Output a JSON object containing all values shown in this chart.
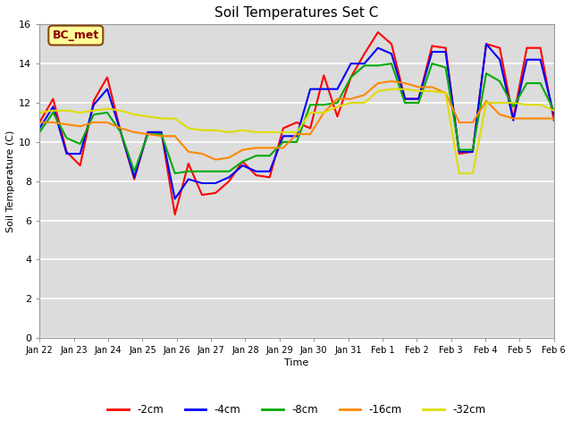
{
  "title": "Soil Temperatures Set C",
  "xlabel": "Time",
  "ylabel": "Soil Temperature (C)",
  "ylim": [
    0,
    16
  ],
  "yticks": [
    0,
    2,
    4,
    6,
    8,
    10,
    12,
    14,
    16
  ],
  "plot_bg_color": "#dcdcdc",
  "fig_bg_color": "#ffffff",
  "annotation_label": "BC_met",
  "annotation_box_color": "#ffff99",
  "annotation_box_edge": "#8b4513",
  "annotation_text_color": "#8b0000",
  "x_labels": [
    "Jan 22",
    "Jan 23",
    "Jan 24",
    "Jan 25",
    "Jan 26",
    "Jan 27",
    "Jan 28",
    "Jan 29",
    "Jan 30",
    "Jan 31",
    "Feb 1",
    "Feb 2",
    "Feb 3",
    "Feb 4",
    "Feb 5",
    "Feb 6"
  ],
  "series": {
    "neg2cm": {
      "label": "-2cm",
      "color": "#ff0000",
      "values": [
        11.0,
        12.2,
        9.5,
        8.8,
        12.1,
        13.3,
        10.5,
        8.1,
        10.5,
        10.5,
        6.3,
        8.9,
        7.3,
        7.4,
        8.0,
        9.0,
        8.3,
        8.2,
        10.7,
        11.0,
        10.7,
        13.4,
        11.3,
        13.3,
        14.5,
        15.6,
        15.0,
        12.2,
        12.2,
        14.9,
        14.8,
        9.4,
        9.5,
        15.0,
        14.8,
        11.2,
        14.8,
        14.8,
        11.1
      ]
    },
    "neg4cm": {
      "label": "-4cm",
      "color": "#0000ff",
      "values": [
        10.7,
        11.8,
        9.4,
        9.4,
        11.9,
        12.7,
        10.5,
        8.2,
        10.5,
        10.5,
        7.1,
        8.1,
        7.9,
        7.9,
        8.2,
        8.8,
        8.5,
        8.5,
        10.3,
        10.3,
        12.7,
        12.7,
        12.7,
        14.0,
        14.0,
        14.8,
        14.5,
        12.2,
        12.2,
        14.6,
        14.6,
        9.5,
        9.5,
        15.0,
        14.2,
        11.1,
        14.2,
        14.2,
        11.4
      ]
    },
    "neg8cm": {
      "label": "-8cm",
      "color": "#00aa00",
      "values": [
        10.5,
        11.5,
        10.2,
        9.9,
        11.4,
        11.5,
        10.5,
        8.5,
        10.4,
        10.4,
        8.4,
        8.5,
        8.5,
        8.5,
        8.5,
        9.0,
        9.3,
        9.3,
        10.0,
        10.0,
        11.9,
        11.9,
        12.0,
        13.3,
        13.9,
        13.9,
        14.0,
        12.0,
        12.0,
        14.0,
        13.8,
        9.6,
        9.6,
        13.5,
        13.1,
        11.8,
        13.0,
        13.0,
        11.6
      ]
    },
    "neg16cm": {
      "label": "-16cm",
      "color": "#ff8800",
      "values": [
        11.0,
        11.0,
        10.9,
        10.8,
        11.0,
        11.0,
        10.7,
        10.5,
        10.4,
        10.3,
        10.3,
        9.5,
        9.4,
        9.1,
        9.2,
        9.6,
        9.7,
        9.7,
        9.7,
        10.4,
        10.4,
        11.5,
        12.2,
        12.2,
        12.4,
        13.0,
        13.1,
        13.0,
        12.8,
        12.8,
        12.5,
        11.0,
        11.0,
        12.1,
        11.4,
        11.2,
        11.2,
        11.2,
        11.2
      ]
    },
    "neg32cm": {
      "label": "-32cm",
      "color": "#dddd00",
      "values": [
        11.5,
        11.6,
        11.6,
        11.5,
        11.6,
        11.7,
        11.6,
        11.4,
        11.3,
        11.2,
        11.2,
        10.7,
        10.6,
        10.6,
        10.5,
        10.6,
        10.5,
        10.5,
        10.5,
        10.5,
        11.5,
        11.5,
        11.8,
        12.0,
        12.0,
        12.6,
        12.7,
        12.7,
        12.6,
        12.6,
        12.5,
        8.4,
        8.4,
        12.0,
        12.0,
        12.0,
        11.9,
        11.9,
        11.6
      ]
    }
  }
}
